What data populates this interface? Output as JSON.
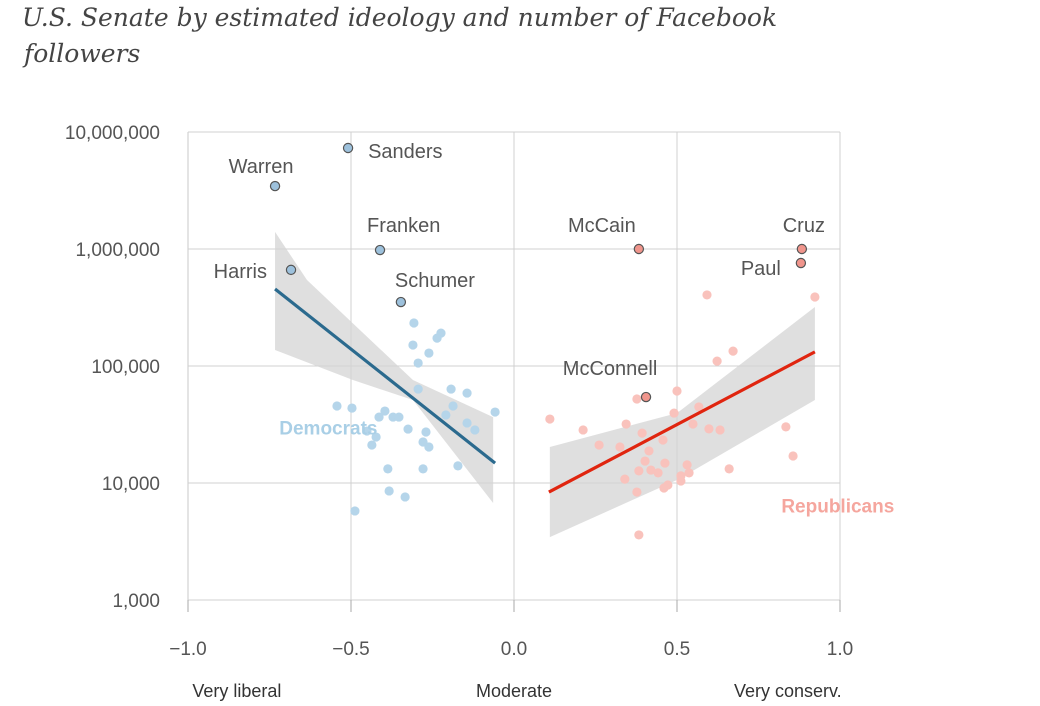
{
  "chart_data": {
    "type": "scatter",
    "title_lines": [
      "U.S. Senate by estimated ideology and number of Facebook",
      "followers"
    ],
    "xlabel": "",
    "ylabel": "",
    "xlim": [
      -1.0,
      1.0
    ],
    "ylim": [
      1000,
      10000000
    ],
    "yscale": "log",
    "grid": true,
    "x_ticks": [
      {
        "v": -1.0,
        "label": "−1.0"
      },
      {
        "v": -0.5,
        "label": "−0.5"
      },
      {
        "v": 0.0,
        "label": "0.0"
      },
      {
        "v": 0.5,
        "label": "0.5"
      },
      {
        "v": 1.0,
        "label": "1.0"
      }
    ],
    "y_ticks": [
      {
        "v": 1000,
        "label": "1,000"
      },
      {
        "v": 10000,
        "label": "10,000"
      },
      {
        "v": 100000,
        "label": "100,000"
      },
      {
        "v": 1000000,
        "label": "1,000,000"
      },
      {
        "v": 10000000,
        "label": "10,000,000"
      }
    ],
    "x_category_labels": [
      {
        "v": -0.85,
        "label": "Very liberal"
      },
      {
        "v": 0.0,
        "label": "Moderate"
      },
      {
        "v": 0.84,
        "label": "Very conserv."
      }
    ],
    "series": [
      {
        "name": "Democrats",
        "color": "#b5d5ea",
        "label_color": "#a9cfe6",
        "named_color": "#9dc1dc",
        "line_color": "#2b6a8e",
        "label_pos": [
          -0.72,
          26000
        ],
        "named": [
          {
            "name": "Sanders",
            "x": -0.509,
            "y": 7300000
          },
          {
            "name": "Warren",
            "x": -0.733,
            "y": 3450000
          },
          {
            "name": "Franken",
            "x": -0.411,
            "y": 980000
          },
          {
            "name": "Harris",
            "x": -0.684,
            "y": 663000
          },
          {
            "name": "Schumer",
            "x": -0.347,
            "y": 352000
          }
        ],
        "points": [
          [
            -0.307,
            233000
          ],
          [
            -0.224,
            191000
          ],
          [
            -0.236,
            173000
          ],
          [
            -0.31,
            151000
          ],
          [
            -0.261,
            129000
          ],
          [
            -0.294,
            106000
          ],
          [
            -0.294,
            63500
          ],
          [
            -0.193,
            63500
          ],
          [
            -0.144,
            58700
          ],
          [
            -0.543,
            45500
          ],
          [
            -0.497,
            43700
          ],
          [
            -0.187,
            45500
          ],
          [
            -0.058,
            40400
          ],
          [
            -0.396,
            41200
          ],
          [
            -0.414,
            36600
          ],
          [
            -0.371,
            36600
          ],
          [
            -0.353,
            36600
          ],
          [
            -0.209,
            38100
          ],
          [
            -0.144,
            32600
          ],
          [
            -0.12,
            28400
          ],
          [
            -0.325,
            28900
          ],
          [
            -0.27,
            27300
          ],
          [
            -0.451,
            27800
          ],
          [
            -0.423,
            24700
          ],
          [
            -0.436,
            21100
          ],
          [
            -0.279,
            22400
          ],
          [
            -0.261,
            20300
          ],
          [
            -0.387,
            13200
          ],
          [
            -0.279,
            13200
          ],
          [
            -0.172,
            14000
          ],
          [
            -0.383,
            8550
          ],
          [
            -0.334,
            7600
          ],
          [
            -0.488,
            5770
          ]
        ],
        "trend": [
          [
            -0.733,
            455000
          ],
          [
            -0.058,
            14800
          ]
        ],
        "band_upper": [
          [
            -0.733,
            1400000
          ],
          [
            -0.635,
            543000
          ],
          [
            -0.31,
            75900
          ],
          [
            -0.064,
            36600
          ]
        ],
        "band_lower": [
          [
            -0.733,
            137000
          ],
          [
            -0.494,
            75900
          ],
          [
            -0.31,
            51200
          ],
          [
            -0.064,
            6740
          ]
        ]
      },
      {
        "name": "Republicans",
        "color": "#f9c2bc",
        "label_color": "#f5a69e",
        "named_color": "#f0958c",
        "line_color": "#e0250f",
        "label_pos": [
          0.82,
          5600
        ],
        "named": [
          {
            "name": "McCain",
            "x": 0.383,
            "y": 1000000
          },
          {
            "name": "Cruz",
            "x": 0.883,
            "y": 1000000
          },
          {
            "name": "Paul",
            "x": 0.88,
            "y": 759000
          },
          {
            "name": "McConnell",
            "x": 0.405,
            "y": 54300
          }
        ],
        "points": [
          [
            0.592,
            405000
          ],
          [
            0.923,
            389000
          ],
          [
            0.672,
            134000
          ],
          [
            0.623,
            110000
          ],
          [
            0.5,
            61100
          ],
          [
            0.377,
            52200
          ],
          [
            0.11,
            35200
          ],
          [
            0.344,
            31900
          ],
          [
            0.491,
            39600
          ],
          [
            0.567,
            44700
          ],
          [
            0.212,
            28400
          ],
          [
            0.393,
            26700
          ],
          [
            0.549,
            31900
          ],
          [
            0.598,
            29000
          ],
          [
            0.632,
            28400
          ],
          [
            0.834,
            30200
          ],
          [
            0.261,
            21100
          ],
          [
            0.325,
            20300
          ],
          [
            0.457,
            23300
          ],
          [
            0.414,
            18800
          ],
          [
            0.402,
            15400
          ],
          [
            0.463,
            14800
          ],
          [
            0.856,
            17000
          ],
          [
            0.383,
            12700
          ],
          [
            0.42,
            12900
          ],
          [
            0.442,
            12200
          ],
          [
            0.531,
            14300
          ],
          [
            0.537,
            12200
          ],
          [
            0.66,
            13200
          ],
          [
            0.512,
            11500
          ],
          [
            0.34,
            10800
          ],
          [
            0.512,
            10400
          ],
          [
            0.472,
            9620
          ],
          [
            0.46,
            9060
          ],
          [
            0.377,
            8370
          ],
          [
            0.383,
            3600
          ]
        ],
        "trend": [
          [
            0.107,
            8370
          ],
          [
            0.923,
            132000
          ]
        ],
        "band_upper": [
          [
            0.11,
            20300
          ],
          [
            0.5,
            39600
          ],
          [
            0.923,
            319000
          ]
        ],
        "band_lower": [
          [
            0.11,
            3450
          ],
          [
            0.5,
            10600
          ],
          [
            0.923,
            51200
          ]
        ]
      }
    ]
  }
}
